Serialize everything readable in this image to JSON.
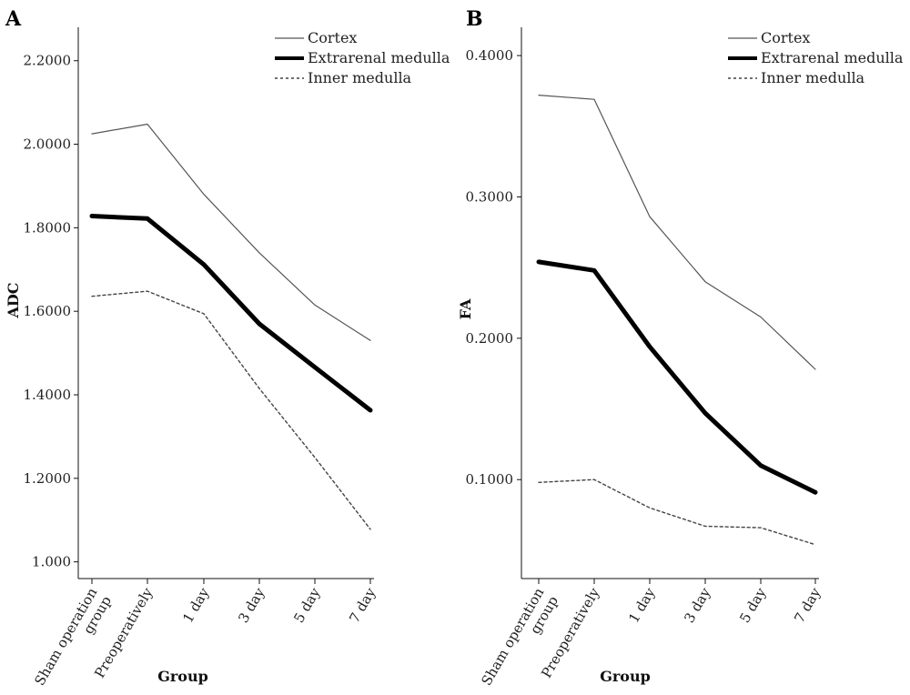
{
  "chart_data": [
    {
      "type": "line",
      "panel_label": "A",
      "xlabel": "Group",
      "ylabel": "ADC",
      "categories": [
        "Sham operation group",
        "Preoperatively",
        "1 day",
        "3 day",
        "5 day",
        "7 day"
      ],
      "ylim": [
        0.96,
        2.28
      ],
      "yticks": [
        {
          "value": 1.0,
          "label": "1.000"
        },
        {
          "value": 1.2,
          "label": "1.2000"
        },
        {
          "value": 1.4,
          "label": "1.4000"
        },
        {
          "value": 1.6,
          "label": "1.6000"
        },
        {
          "value": 1.8,
          "label": "1.8000"
        },
        {
          "value": 2.0,
          "label": "2.0000"
        },
        {
          "value": 2.2,
          "label": "2.2000"
        }
      ],
      "legend_position": "top-right",
      "series": [
        {
          "name": "Cortex",
          "style": "thin",
          "values": [
            2.025,
            2.048,
            1.88,
            1.74,
            1.615,
            1.53
          ]
        },
        {
          "name": "Extrarenal medulla",
          "style": "thick",
          "values": [
            1.828,
            1.822,
            1.712,
            1.57,
            1.466,
            1.363
          ]
        },
        {
          "name": "Inner medulla",
          "style": "dashed",
          "values": [
            1.636,
            1.648,
            1.594,
            1.415,
            1.25,
            1.078
          ]
        }
      ]
    },
    {
      "type": "line",
      "panel_label": "B",
      "xlabel": "Group",
      "ylabel": "FA",
      "categories": [
        "Sham operation group",
        "Preoperatively",
        "1 day",
        "3 day",
        "5 day",
        "7 day"
      ],
      "ylim": [
        0.03,
        0.42
      ],
      "yticks": [
        {
          "value": 0.1,
          "label": "0.1000"
        },
        {
          "value": 0.2,
          "label": "0.2000"
        },
        {
          "value": 0.3,
          "label": "0.3000"
        },
        {
          "value": 0.4,
          "label": "0.4000"
        }
      ],
      "legend_position": "top-right",
      "series": [
        {
          "name": "Cortex",
          "style": "thin",
          "values": [
            0.372,
            0.369,
            0.286,
            0.24,
            0.215,
            0.178
          ]
        },
        {
          "name": "Extrarenal medulla",
          "style": "thick",
          "values": [
            0.254,
            0.248,
            0.194,
            0.147,
            0.11,
            0.091
          ]
        },
        {
          "name": "Inner medulla",
          "style": "dashed",
          "values": [
            0.098,
            0.1,
            0.08,
            0.067,
            0.066,
            0.054
          ]
        }
      ]
    }
  ],
  "colors": {
    "axis": "#111111",
    "thin_line": "#555555",
    "thick_line": "#000000",
    "dashed_line": "#444444"
  }
}
